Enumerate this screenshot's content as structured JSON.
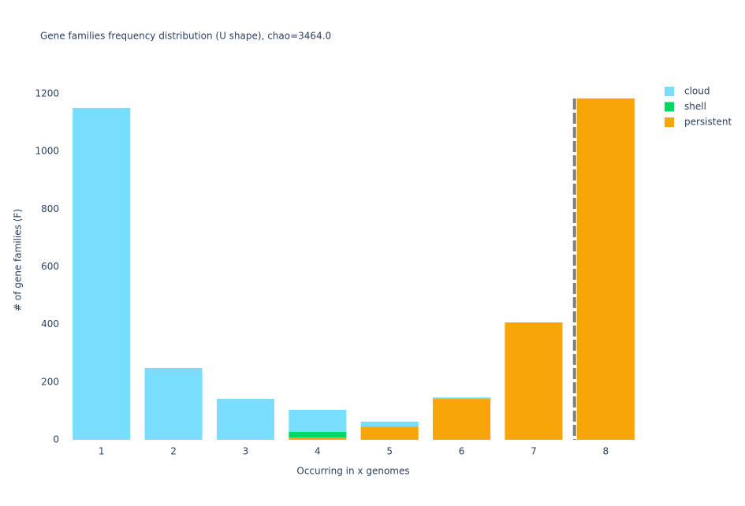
{
  "chart_data": {
    "type": "stacked-bar",
    "title": "Gene families frequency distribution (U shape), chao=3464.0",
    "x_label": "Occurring in x genomes",
    "y_label": "# of gene families (F)",
    "categories": [
      "1",
      "2",
      "3",
      "4",
      "5",
      "6",
      "7",
      "8"
    ],
    "series": [
      {
        "name": "cloud",
        "color": "#79defd",
        "values": [
          1151,
          249,
          142,
          76,
          17,
          5,
          0,
          0
        ]
      },
      {
        "name": "shell",
        "color": "#00d861",
        "values": [
          0,
          0,
          0,
          20,
          0,
          0,
          0,
          0
        ]
      },
      {
        "name": "persistent",
        "color": "#f7a508",
        "values": [
          0,
          0,
          0,
          8,
          46,
          142,
          407,
          1184
        ]
      }
    ],
    "ylim": [
      0,
      1200
    ],
    "yticks": [
      0,
      200,
      400,
      600,
      800,
      1000,
      1200
    ]
  }
}
